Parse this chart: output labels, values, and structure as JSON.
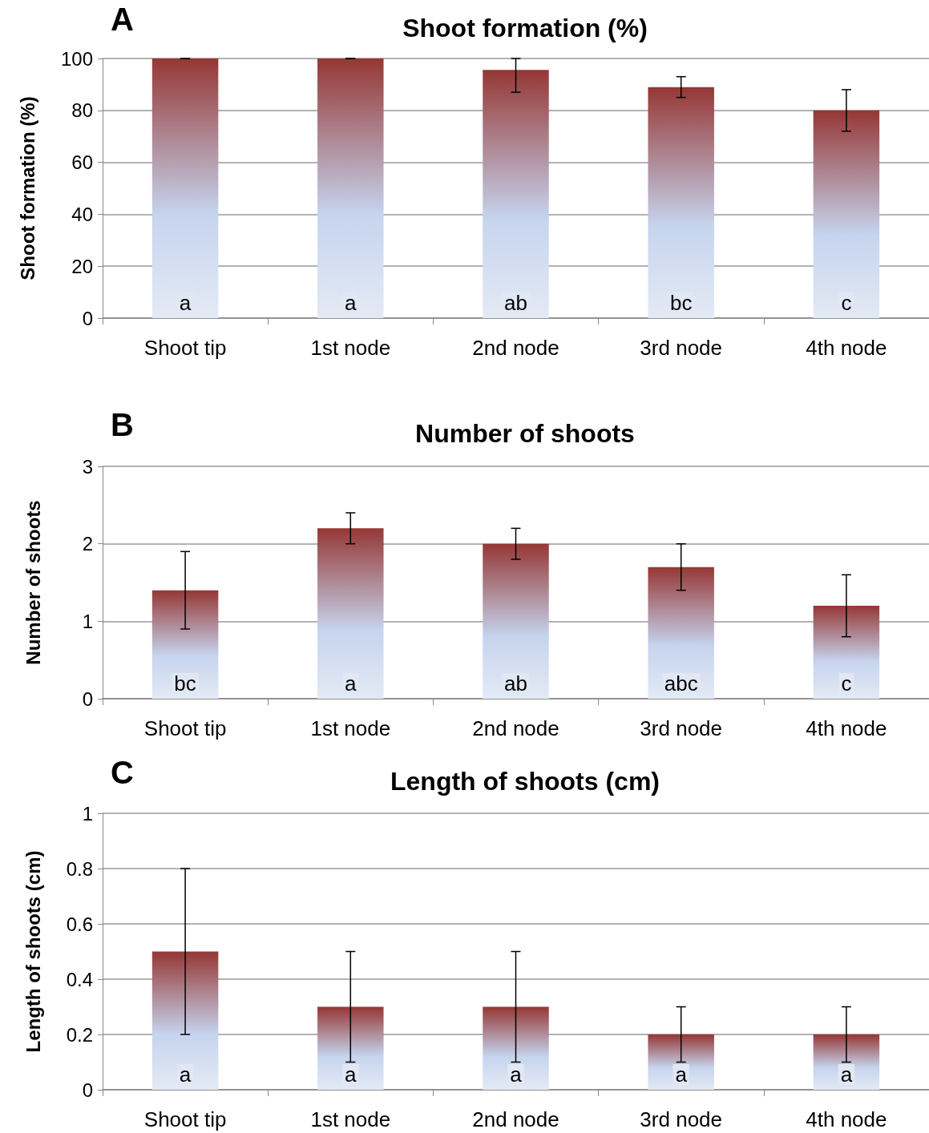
{
  "chart_data": [
    {
      "type": "bar",
      "title": "Shoot formation (%)",
      "ylabel": "Shoot formation (%)",
      "categories": [
        "Shoot tip",
        "1st node",
        "2nd node",
        "3rd node",
        "4th node"
      ],
      "values": [
        100,
        100,
        95.6,
        89,
        80
      ],
      "color": "#953735",
      "errors": [
        0,
        0,
        [
          87,
          100
        ],
        4,
        8
      ],
      "ylim": [
        0,
        100
      ],
      "yticks": [
        0,
        20,
        40,
        60,
        80,
        100
      ],
      "grid": "y",
      "annotations": [
        "A",
        "a",
        "a",
        "ab",
        "bc",
        "c"
      ]
    },
    {
      "type": "bar",
      "title": "Number of shoots",
      "ylabel": "Number of shoots",
      "categories": [
        "Shoot tip",
        "1st node",
        "2nd node",
        "3rd node",
        "4th node"
      ],
      "values": [
        1.4,
        2.2,
        2.0,
        1.7,
        1.2
      ],
      "color": "#953735",
      "errors": [
        0.5,
        0.2,
        0.2,
        0.3,
        0.4
      ],
      "ylim": [
        0,
        3
      ],
      "yticks": [
        0,
        1,
        2,
        3
      ],
      "grid": "y",
      "annotations": [
        "B",
        "bc",
        "a",
        "ab",
        "abc",
        "c"
      ]
    },
    {
      "type": "bar",
      "title": "Length of shoots (cm)",
      "ylabel": "Length of shoots (cm)",
      "categories": [
        "Shoot tip",
        "1st node",
        "2nd node",
        "3rd node",
        "4th node"
      ],
      "values": [
        0.5,
        0.3,
        0.3,
        0.2,
        0.2
      ],
      "color": "#953735",
      "errors": [
        0.3,
        0.2,
        0.2,
        0.1,
        0.1
      ],
      "ylim": [
        0,
        1
      ],
      "yticks": [
        0,
        0.2,
        0.4,
        0.6,
        0.8,
        1
      ],
      "grid": "y",
      "annotations": [
        "C",
        "a",
        "a",
        "a",
        "a",
        "a"
      ]
    }
  ]
}
